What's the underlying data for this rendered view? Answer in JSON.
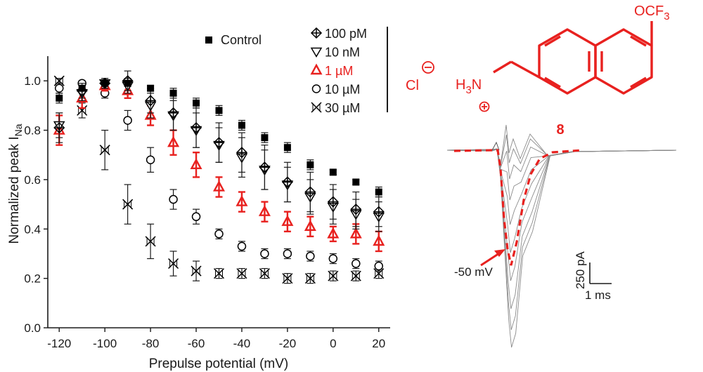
{
  "chart_data": {
    "type": "scatter",
    "xlabel": "Prepulse potential (mV)",
    "ylabel": "Normalized peak I",
    "ylabel_sub": "Na",
    "xlim": [
      -125,
      25
    ],
    "ylim": [
      0,
      1.1
    ],
    "xticks": [
      "-120",
      "-100",
      "-80",
      "-60",
      "-40",
      "-20",
      "0",
      "20"
    ],
    "xtick_values": [
      -120,
      -100,
      -80,
      -60,
      -40,
      -20,
      0,
      20
    ],
    "yticks": [
      "0.0",
      "0.2",
      "0.4",
      "0.6",
      "0.8",
      "1.0"
    ],
    "ytick_values": [
      0,
      0.2,
      0.4,
      0.6,
      0.8,
      1.0
    ],
    "x": [
      -120,
      -110,
      -100,
      -90,
      -80,
      -70,
      -60,
      -50,
      -40,
      -30,
      -20,
      -10,
      0,
      10,
      20
    ],
    "series": [
      {
        "name": "Control",
        "marker": "square",
        "color": "#000000",
        "values": [
          0.93,
          0.97,
          0.99,
          0.99,
          0.97,
          0.95,
          0.91,
          0.88,
          0.82,
          0.77,
          0.73,
          0.66,
          0.63,
          0.59,
          0.55
        ],
        "err": [
          0.02,
          0.01,
          0.01,
          0.01,
          0.01,
          0.02,
          0.02,
          0.02,
          0.02,
          0.02,
          0.02,
          0.02,
          0.01,
          0.01,
          0.02
        ]
      },
      {
        "name": "100 pM",
        "marker": "diamond-cross",
        "color": "#000000",
        "values": [
          0.81,
          0.96,
          0.99,
          1.0,
          0.92,
          0.87,
          0.81,
          0.75,
          0.71,
          0.65,
          0.59,
          0.55,
          0.51,
          0.48,
          0.47
        ],
        "err": [
          0.06,
          0.03,
          0.02,
          0.04,
          0.05,
          0.07,
          0.08,
          0.08,
          0.08,
          0.09,
          0.08,
          0.08,
          0.07,
          0.07,
          0.06
        ]
      },
      {
        "name": "10 nM",
        "marker": "triangle-down",
        "color": "#000000",
        "values": [
          0.82,
          0.95,
          0.99,
          0.98,
          0.9,
          0.86,
          0.8,
          0.74,
          0.69,
          0.64,
          0.58,
          0.53,
          0.49,
          0.46,
          0.45
        ],
        "err": [
          0.05,
          0.03,
          0.02,
          0.03,
          0.05,
          0.06,
          0.07,
          0.07,
          0.08,
          0.08,
          0.07,
          0.07,
          0.07,
          0.06,
          0.06
        ]
      },
      {
        "name": "1 µM",
        "marker": "triangle-up",
        "color": "#e8211f",
        "values": [
          0.8,
          0.93,
          0.98,
          0.96,
          0.86,
          0.75,
          0.66,
          0.57,
          0.51,
          0.47,
          0.43,
          0.41,
          0.38,
          0.38,
          0.35
        ],
        "err": [
          0.06,
          0.04,
          0.02,
          0.03,
          0.04,
          0.05,
          0.05,
          0.04,
          0.04,
          0.04,
          0.04,
          0.04,
          0.03,
          0.04,
          0.04
        ]
      },
      {
        "name": "10 µM",
        "marker": "circle",
        "color": "#000000",
        "values": [
          0.97,
          0.99,
          0.95,
          0.84,
          0.68,
          0.52,
          0.45,
          0.38,
          0.33,
          0.3,
          0.3,
          0.29,
          0.28,
          0.26,
          0.25
        ],
        "err": [
          0.02,
          0.01,
          0.02,
          0.04,
          0.05,
          0.04,
          0.03,
          0.02,
          0.02,
          0.02,
          0.02,
          0.02,
          0.02,
          0.02,
          0.02
        ]
      },
      {
        "name": "30 µM",
        "marker": "x-cross",
        "color": "#000000",
        "values": [
          1.0,
          0.88,
          0.72,
          0.5,
          0.35,
          0.26,
          0.23,
          0.22,
          0.22,
          0.22,
          0.2,
          0.2,
          0.21,
          0.21,
          0.22
        ],
        "err": [
          0.01,
          0.03,
          0.08,
          0.08,
          0.07,
          0.05,
          0.04,
          0.02,
          0.02,
          0.02,
          0.02,
          0.02,
          0.02,
          0.02,
          0.02
        ]
      }
    ]
  },
  "legend": {
    "control": "Control",
    "group": [
      "100 pM",
      "10 nM",
      "1 µM",
      "10 µM",
      "30 µM"
    ]
  },
  "compound": {
    "substituent": "OCF",
    "substituent_sub": "3",
    "counterion": "Cl",
    "ammonium_h": "H",
    "ammonium_sub": "3",
    "ammonium_n": "N",
    "label": "8",
    "color": "#e8211f"
  },
  "trace": {
    "voltage_label": "-50 mV",
    "scale_current": "250 pA",
    "scale_time": "1 ms"
  }
}
